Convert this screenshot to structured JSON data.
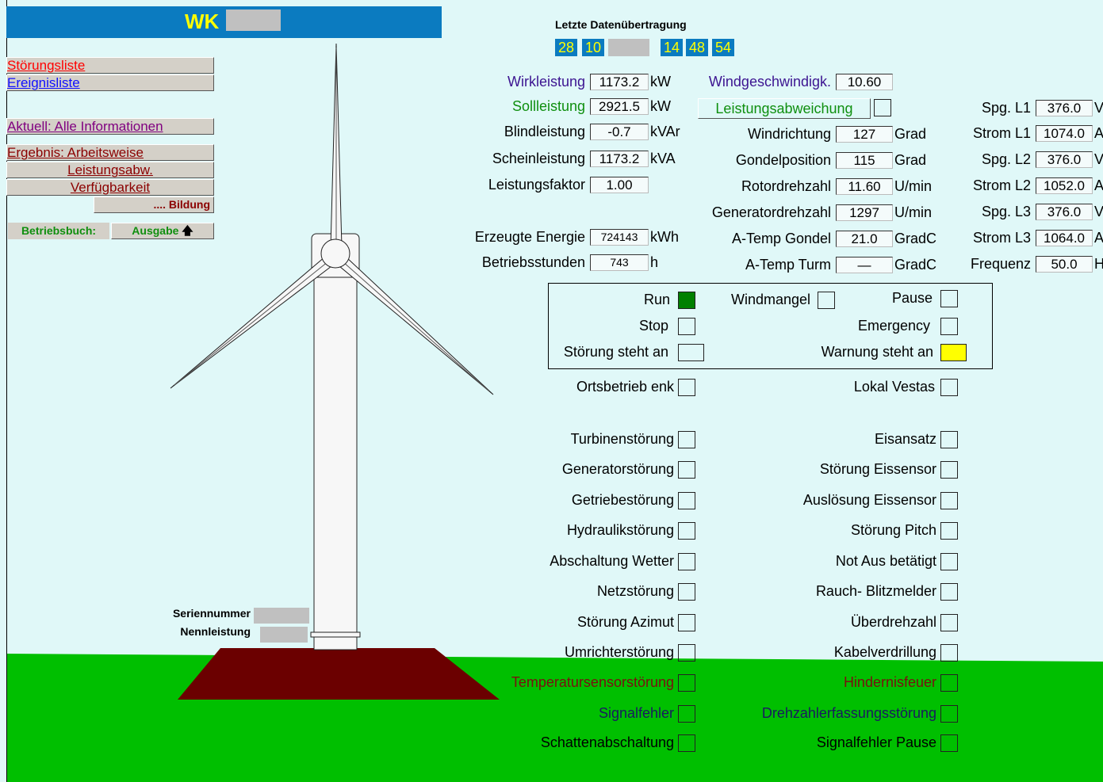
{
  "header": {
    "title": "WK"
  },
  "menu": {
    "items": [
      {
        "label": "Störungsliste",
        "color": "#ff0000"
      },
      {
        "label": "Ereignisliste",
        "color": "#1010ff"
      },
      {
        "label": "Aktuell: Alle Informationen",
        "color": "#800080"
      },
      {
        "label": "Ergebnis: Arbeitsweise",
        "color": "#8b0000"
      },
      {
        "label": "Leistungsabw.",
        "color": "#8b0000"
      },
      {
        "label": "Verfügbarkeit",
        "color": "#8b0000"
      },
      {
        "label": ".... Bildung",
        "color": "#8b0000"
      }
    ],
    "logbook_label": "Betriebsbuch:",
    "logbook_button": "Ausgabe"
  },
  "transfer": {
    "label": "Letzte Datenübertragung",
    "date": [
      "28",
      "10"
    ],
    "time": [
      "14",
      "48",
      "54"
    ]
  },
  "power": [
    {
      "label": "Wirkleistung",
      "value": "1173.2",
      "unit": "kW",
      "color": "#3c1491"
    },
    {
      "label": "Sollleistung",
      "value": "2921.5",
      "unit": "kW",
      "color": "#0f8f0f"
    },
    {
      "label": "Blindleistung",
      "value": "-0.7",
      "unit": "kVAr"
    },
    {
      "label": "Scheinleistung",
      "value": "1173.2",
      "unit": "kVA"
    },
    {
      "label": "Leistungsfaktor",
      "value": "1.00"
    },
    {
      "label": "Erzeugte Energie",
      "value": "724143",
      "unit": "kWh"
    },
    {
      "label": "Betriebsstunden",
      "value": "743",
      "unit": "h"
    }
  ],
  "wind": {
    "label": "Windgeschwindigk.",
    "value": "10.60",
    "color": "#3c1491"
  },
  "deviation": {
    "label": "Leistungsabweichung",
    "color": "#0f8f0f"
  },
  "rotor": [
    {
      "label": "Windrichtung",
      "value": "127",
      "unit": "Grad"
    },
    {
      "label": "Gondelposition",
      "value": "115",
      "unit": "Grad"
    },
    {
      "label": "Rotordrehzahl",
      "value": "11.60",
      "unit": "U/min"
    },
    {
      "label": "Generatordrehzahl",
      "value": "1297",
      "unit": "U/min"
    },
    {
      "label": "A-Temp Gondel",
      "value": "21.0",
      "unit": "GradC"
    },
    {
      "label": "A-Temp Turm",
      "value": "—",
      "unit": "GradC"
    }
  ],
  "grid": [
    {
      "label": "Spg. L1",
      "value": "376.0",
      "unit": "V"
    },
    {
      "label": "Strom L1",
      "value": "1074.0",
      "unit": "A"
    },
    {
      "label": "Spg. L2",
      "value": "376.0",
      "unit": "V"
    },
    {
      "label": "Strom L2",
      "value": "1052.0",
      "unit": "A"
    },
    {
      "label": "Spg. L3",
      "value": "376.0",
      "unit": "V"
    },
    {
      "label": "Strom L3",
      "value": "1064.0",
      "unit": "A"
    },
    {
      "label": "Frequenz",
      "value": "50.0",
      "unit": "H"
    }
  ],
  "status": [
    {
      "label": "Run",
      "color": "#008000"
    },
    {
      "label": "Windmangel"
    },
    {
      "label": "Pause"
    },
    {
      "label": "Stop"
    },
    {
      "label": "Emergency"
    },
    {
      "label": "Störung steht an"
    },
    {
      "label": "Warnung steht an",
      "color": "#ffff00"
    },
    {
      "label": "Ortsbetrieb enk"
    },
    {
      "label": "Lokal Vestas"
    }
  ],
  "faults_left": [
    {
      "label": "Turbinenstörung"
    },
    {
      "label": "Generatorstörung"
    },
    {
      "label": "Getriebestörung"
    },
    {
      "label": "Hydraulikstörung"
    },
    {
      "label": "Abschaltung Wetter"
    },
    {
      "label": "Netzstörung"
    },
    {
      "label": "Störung Azimut"
    },
    {
      "label": "Umrichterstörung"
    },
    {
      "label": "Temperatursensorstörung",
      "text_color": "#7a1010"
    },
    {
      "label": "Signalfehler",
      "text_color": "#1a1a60"
    },
    {
      "label": "Schattenabschaltung"
    }
  ],
  "faults_right": [
    {
      "label": "Eisansatz"
    },
    {
      "label": "Störung Eissensor"
    },
    {
      "label": "Auslösung Eissensor"
    },
    {
      "label": "Störung Pitch"
    },
    {
      "label": "Not Aus betätigt"
    },
    {
      "label": "Rauch- Blitzmelder"
    },
    {
      "label": "Überdrehzahl"
    },
    {
      "label": "Kabelverdrillung"
    },
    {
      "label": "Hindernisfeuer",
      "text_color": "#7a1010"
    },
    {
      "label": "Drehzahlerfassungsstörung",
      "text_color": "#1a1a60"
    },
    {
      "label": "Signalfehler Pause"
    }
  ],
  "plate": {
    "serial_label": "Seriennummer",
    "rating_label": "Nennleistung"
  }
}
